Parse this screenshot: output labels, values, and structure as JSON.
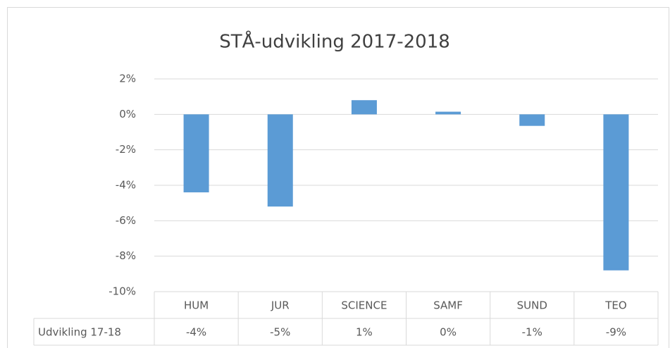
{
  "chart_data": {
    "type": "bar",
    "title": "STÅ-udvikling 2017-2018",
    "categories": [
      "HUM",
      "JUR",
      "SCIENCE",
      "SAMF",
      "SUND",
      "TEO"
    ],
    "series": [
      {
        "name": "Udvikling 17-18",
        "color": "#5b9bd5",
        "values": [
          -4.4,
          -5.2,
          0.8,
          0.15,
          -0.65,
          -8.8
        ],
        "value_labels": [
          "-4%",
          "-5%",
          "1%",
          "0%",
          "-1%",
          "-9%"
        ]
      }
    ],
    "ylim": [
      -10,
      2
    ],
    "yticks": [
      {
        "value": -10,
        "label": "-10%"
      },
      {
        "value": -8,
        "label": "-8%"
      },
      {
        "value": -6,
        "label": "-6%"
      },
      {
        "value": -4,
        "label": "-4%"
      },
      {
        "value": -2,
        "label": "-2%"
      },
      {
        "value": 0,
        "label": "0%"
      },
      {
        "value": 2,
        "label": "2%"
      }
    ],
    "grid": true
  }
}
